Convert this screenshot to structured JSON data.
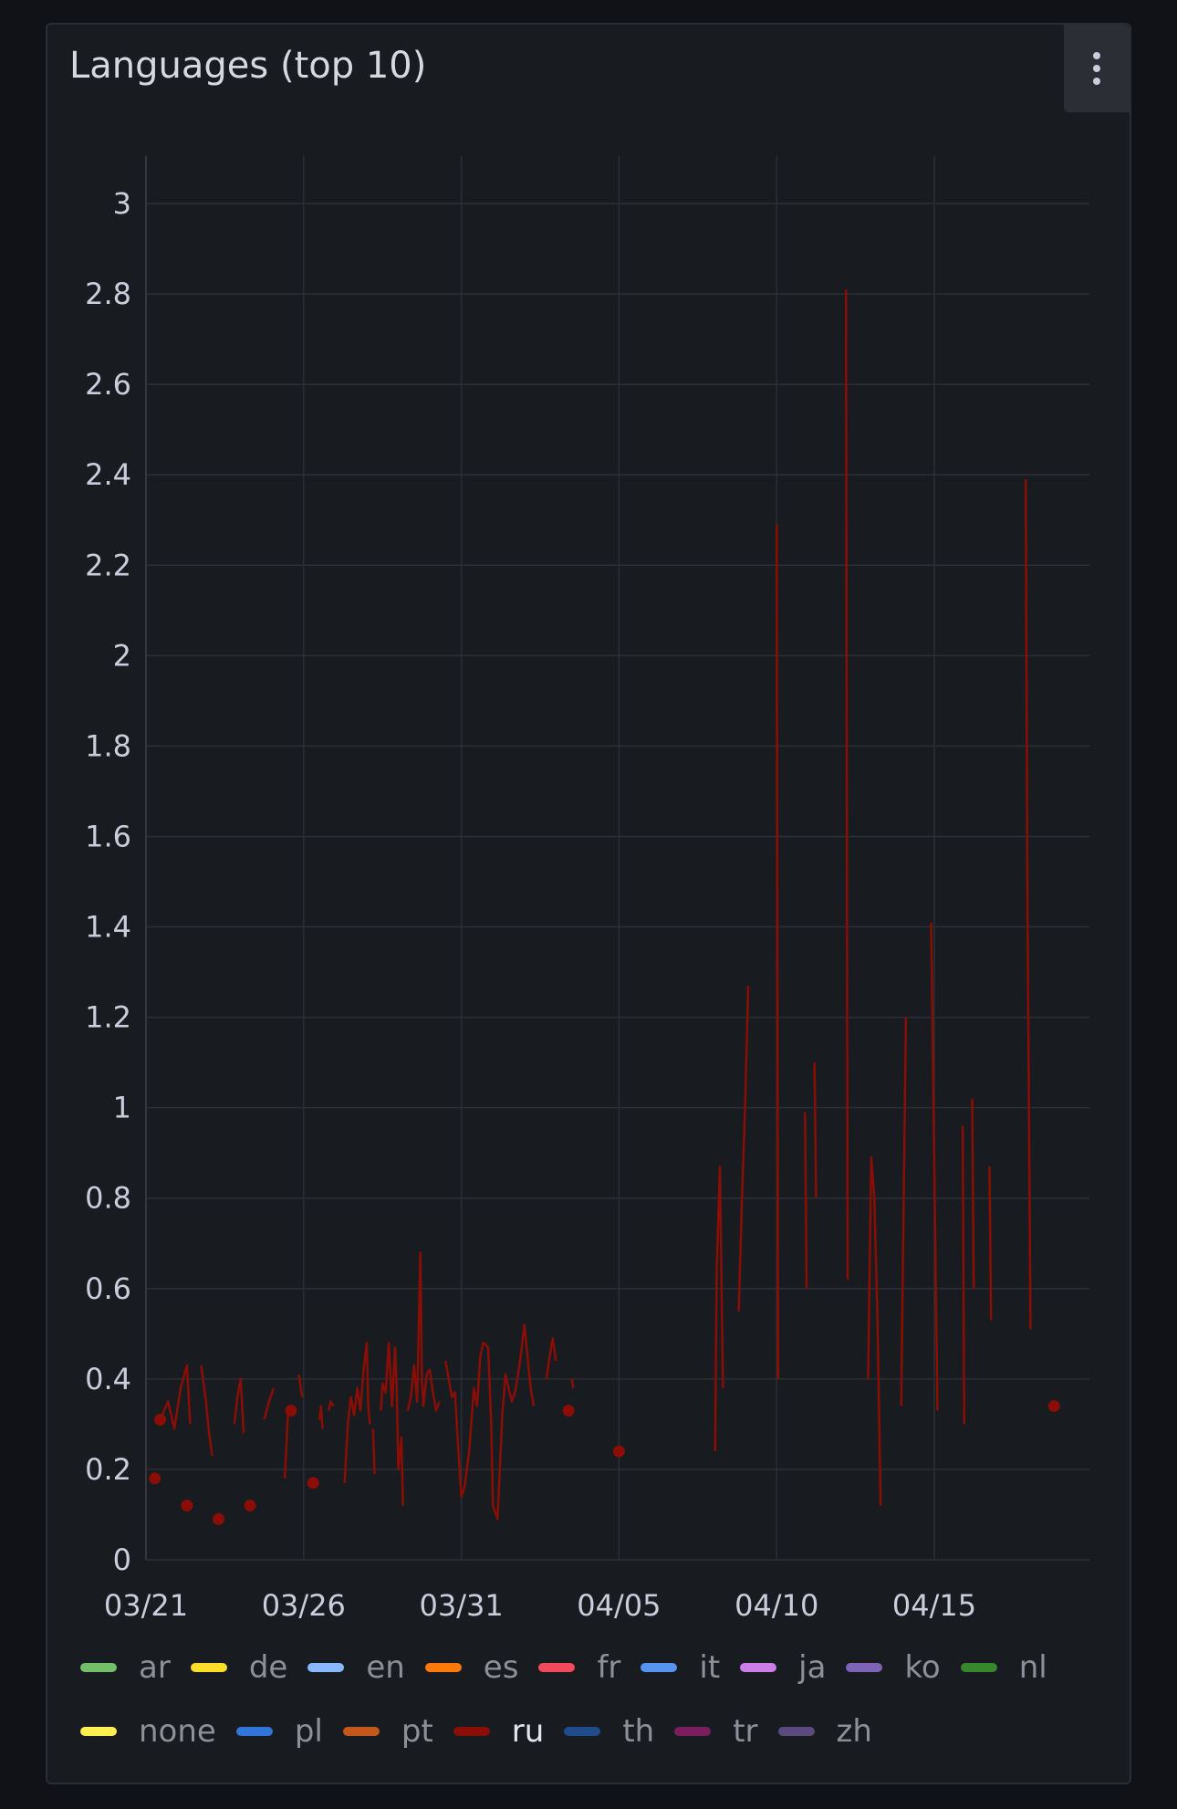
{
  "panel": {
    "title": "Languages (top 10)",
    "menu_icon": "kebab-menu-icon"
  },
  "chart_data": {
    "type": "line",
    "ylim": [
      0,
      3
    ],
    "y_ticks": [
      "0",
      "0.2",
      "0.4",
      "0.6",
      "0.8",
      "1",
      "1.2",
      "1.4",
      "1.6",
      "1.8",
      "2",
      "2.2",
      "2.4",
      "2.6",
      "2.8",
      "3"
    ],
    "x_ticks": [
      {
        "label": "03/21",
        "day": "03/21"
      },
      {
        "label": "03/26",
        "day": "03/26"
      },
      {
        "label": "03/31",
        "day": "03/31"
      },
      {
        "label": "04/05",
        "day": "04/05"
      },
      {
        "label": "04/10",
        "day": "04/10"
      },
      {
        "label": "04/15",
        "day": "04/15"
      }
    ],
    "xlim": [
      "03/21",
      "04/20"
    ],
    "grid": true,
    "legend_position": "bottom",
    "legend": [
      {
        "name": "ar",
        "color": "#73bf69"
      },
      {
        "name": "de",
        "color": "#fade2a"
      },
      {
        "name": "en",
        "color": "#8ab8ff"
      },
      {
        "name": "es",
        "color": "#ff780a"
      },
      {
        "name": "fr",
        "color": "#f2495c"
      },
      {
        "name": "it",
        "color": "#5794f2"
      },
      {
        "name": "ja",
        "color": "#ca7fe6"
      },
      {
        "name": "ko",
        "color": "#7e64b6"
      },
      {
        "name": "nl",
        "color": "#37872d"
      },
      {
        "name": "none",
        "color": "#ffee52"
      },
      {
        "name": "pl",
        "color": "#3274d9"
      },
      {
        "name": "pt",
        "color": "#c4571a"
      },
      {
        "name": "ru",
        "color": "#8a0e06",
        "active": true
      },
      {
        "name": "th",
        "color": "#1f4b8a"
      },
      {
        "name": "tr",
        "color": "#7a1e5e"
      },
      {
        "name": "zh",
        "color": "#5a4a80"
      }
    ],
    "series": [
      {
        "name": "ru",
        "color": "#8a0e06",
        "segments": [
          [
            [
              0.45,
              0.31
            ],
            [
              0.7,
              0.35
            ],
            [
              0.9,
              0.29
            ],
            [
              1.1,
              0.38
            ],
            [
              1.3,
              0.43
            ],
            [
              1.4,
              0.3
            ]
          ],
          [
            [
              1.75,
              0.43
            ],
            [
              1.9,
              0.35
            ],
            [
              2.0,
              0.28
            ],
            [
              2.1,
              0.23
            ]
          ],
          [
            [
              2.8,
              0.3
            ],
            [
              2.9,
              0.36
            ],
            [
              3.0,
              0.4
            ],
            [
              3.1,
              0.28
            ]
          ],
          [
            [
              3.75,
              0.31
            ],
            [
              3.9,
              0.35
            ],
            [
              4.05,
              0.38
            ]
          ],
          [
            [
              4.4,
              0.18
            ],
            [
              4.5,
              0.32
            ]
          ],
          [
            [
              4.85,
              0.41
            ],
            [
              4.95,
              0.36
            ]
          ],
          [
            [
              5.5,
              0.31
            ],
            [
              5.55,
              0.34
            ],
            [
              5.6,
              0.29
            ]
          ],
          [
            [
              5.8,
              0.33
            ],
            [
              5.85,
              0.35
            ],
            [
              5.95,
              0.34
            ]
          ],
          [
            [
              6.3,
              0.17
            ],
            [
              6.4,
              0.3
            ],
            [
              6.5,
              0.36
            ],
            [
              6.6,
              0.32
            ],
            [
              6.7,
              0.38
            ],
            [
              6.8,
              0.33
            ],
            [
              6.9,
              0.42
            ],
            [
              7.0,
              0.48
            ],
            [
              7.05,
              0.34
            ],
            [
              7.1,
              0.3
            ]
          ],
          [
            [
              7.2,
              0.29
            ],
            [
              7.25,
              0.19
            ]
          ],
          [
            [
              7.45,
              0.33
            ],
            [
              7.5,
              0.39
            ],
            [
              7.6,
              0.37
            ],
            [
              7.7,
              0.48
            ],
            [
              7.8,
              0.34
            ],
            [
              7.9,
              0.47
            ],
            [
              7.95,
              0.38
            ],
            [
              8.0,
              0.2
            ],
            [
              8.1,
              0.27
            ],
            [
              8.15,
              0.12
            ]
          ],
          [
            [
              8.3,
              0.33
            ],
            [
              8.4,
              0.36
            ],
            [
              8.5,
              0.43
            ],
            [
              8.6,
              0.35
            ],
            [
              8.7,
              0.68
            ],
            [
              8.75,
              0.4
            ],
            [
              8.8,
              0.34
            ],
            [
              8.9,
              0.41
            ],
            [
              9.0,
              0.42
            ],
            [
              9.1,
              0.37
            ],
            [
              9.2,
              0.33
            ],
            [
              9.3,
              0.35
            ]
          ],
          [
            [
              9.5,
              0.44
            ],
            [
              9.6,
              0.4
            ],
            [
              9.7,
              0.36
            ],
            [
              9.8,
              0.37
            ],
            [
              9.9,
              0.25
            ],
            [
              10.0,
              0.14
            ],
            [
              10.1,
              0.16
            ],
            [
              10.25,
              0.24
            ],
            [
              10.4,
              0.38
            ],
            [
              10.5,
              0.34
            ],
            [
              10.6,
              0.45
            ],
            [
              10.7,
              0.48
            ],
            [
              10.85,
              0.47
            ],
            [
              10.95,
              0.3
            ],
            [
              11.0,
              0.12
            ],
            [
              11.15,
              0.09
            ],
            [
              11.3,
              0.32
            ],
            [
              11.4,
              0.41
            ],
            [
              11.5,
              0.38
            ],
            [
              11.6,
              0.35
            ],
            [
              11.7,
              0.37
            ],
            [
              11.8,
              0.41
            ],
            [
              11.9,
              0.46
            ],
            [
              12.0,
              0.52
            ],
            [
              12.1,
              0.45
            ],
            [
              12.2,
              0.38
            ],
            [
              12.3,
              0.34
            ]
          ],
          [
            [
              12.7,
              0.4
            ],
            [
              12.8,
              0.45
            ],
            [
              12.9,
              0.49
            ],
            [
              13.0,
              0.44
            ]
          ],
          [
            [
              13.5,
              0.4
            ],
            [
              13.55,
              0.38
            ]
          ],
          [
            [
              18.05,
              0.24
            ],
            [
              18.1,
              0.64
            ],
            [
              18.2,
              0.87
            ],
            [
              18.3,
              0.38
            ]
          ],
          [
            [
              18.8,
              0.55
            ],
            [
              18.9,
              0.8
            ],
            [
              19.0,
              1.0
            ],
            [
              19.1,
              1.27
            ]
          ],
          [
            [
              20.0,
              2.29
            ],
            [
              20.05,
              0.4
            ]
          ],
          [
            [
              20.9,
              0.99
            ],
            [
              20.95,
              0.6
            ]
          ],
          [
            [
              21.2,
              1.1
            ],
            [
              21.25,
              0.8
            ]
          ],
          [
            [
              22.2,
              2.81
            ],
            [
              22.25,
              0.62
            ]
          ],
          [
            [
              22.9,
              0.4
            ],
            [
              23.0,
              0.89
            ],
            [
              23.1,
              0.8
            ],
            [
              23.2,
              0.52
            ],
            [
              23.3,
              0.12
            ]
          ],
          [
            [
              23.95,
              0.34
            ],
            [
              24.1,
              1.2
            ]
          ],
          [
            [
              24.9,
              1.41
            ],
            [
              25.1,
              0.33
            ]
          ],
          [
            [
              25.9,
              0.96
            ],
            [
              25.95,
              0.3
            ]
          ],
          [
            [
              26.2,
              1.02
            ],
            [
              26.25,
              0.6
            ]
          ],
          [
            [
              26.75,
              0.87
            ],
            [
              26.8,
              0.53
            ]
          ],
          [
            [
              27.9,
              2.39
            ],
            [
              27.95,
              1.5
            ],
            [
              28.05,
              0.51
            ]
          ]
        ],
        "points": [
          [
            0.28,
            0.18
          ],
          [
            0.45,
            0.31
          ],
          [
            1.3,
            0.12
          ],
          [
            2.3,
            0.09
          ],
          [
            3.3,
            0.12
          ],
          [
            4.6,
            0.33
          ],
          [
            5.3,
            0.17
          ],
          [
            13.4,
            0.33
          ],
          [
            15.0,
            0.24
          ],
          [
            28.8,
            0.34
          ]
        ]
      }
    ]
  }
}
